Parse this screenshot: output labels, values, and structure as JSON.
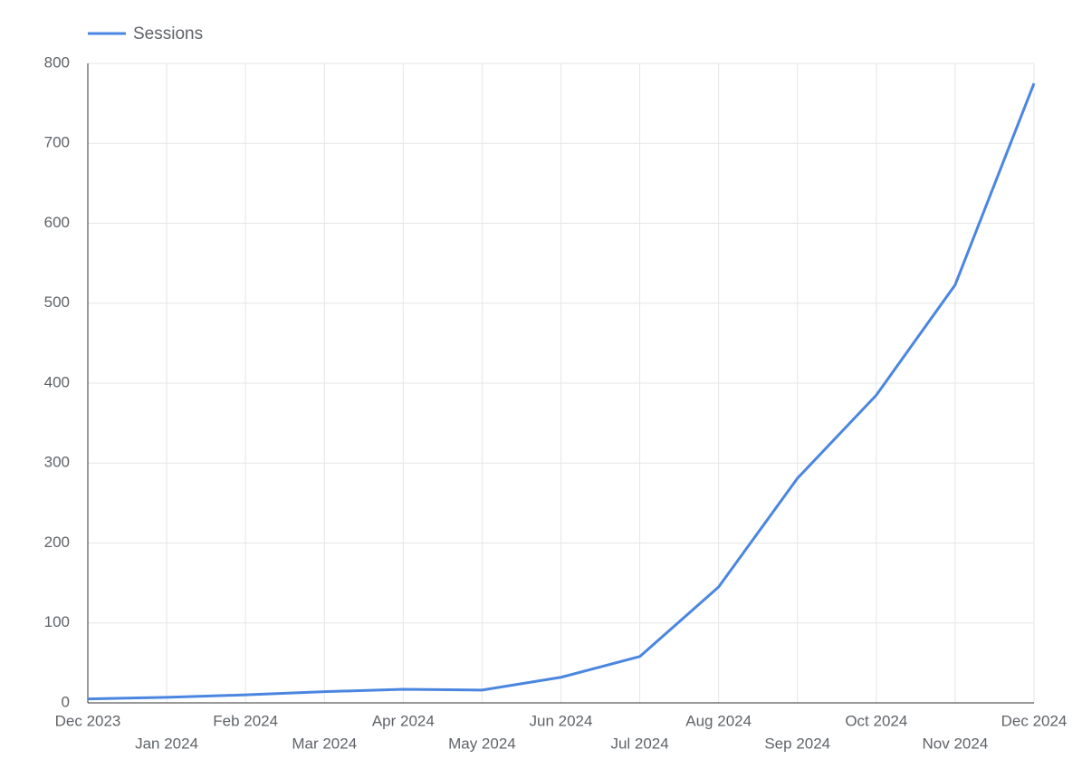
{
  "chart_data": {
    "type": "line",
    "categories": [
      "Dec 2023",
      "Jan 2024",
      "Feb 2024",
      "Mar 2024",
      "Apr 2024",
      "May 2024",
      "Jun 2024",
      "Jul 2024",
      "Aug 2024",
      "Sep 2024",
      "Oct 2024",
      "Nov 2024",
      "Dec 2024"
    ],
    "series": [
      {
        "name": "Sessions",
        "color": "#4a86e0",
        "values": [
          5,
          7,
          10,
          14,
          17,
          16,
          32,
          58,
          145,
          281,
          385,
          523,
          775
        ]
      }
    ],
    "ylim": [
      0,
      800
    ],
    "yticks": [
      0,
      100,
      200,
      300,
      400,
      500,
      600,
      700,
      800
    ],
    "grid": true,
    "legend": "top-left"
  }
}
